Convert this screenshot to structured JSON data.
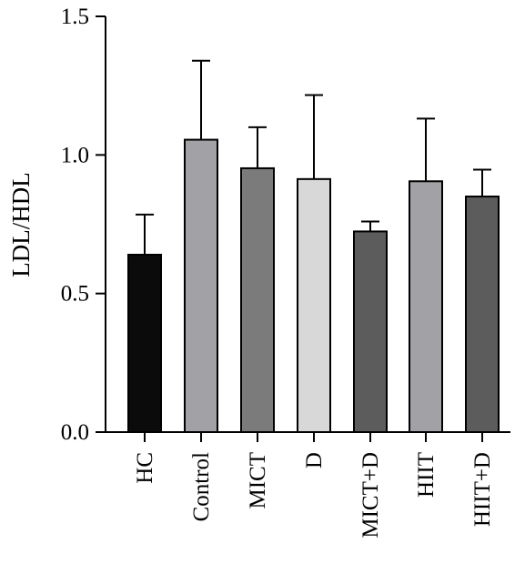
{
  "chart_data": {
    "type": "bar",
    "ylabel": "LDL/HDL",
    "xlabel": "",
    "ylim": [
      0,
      1.5
    ],
    "yticks": [
      "0.0",
      "0.5",
      "1.0",
      "1.5"
    ],
    "categories": [
      "HC",
      "Control",
      "MICT",
      "D",
      "MICT+D",
      "HIIT",
      "HIIT+D"
    ],
    "values": [
      0.64,
      1.055,
      0.952,
      0.913,
      0.724,
      0.905,
      0.85
    ],
    "error_upper": [
      0.145,
      0.285,
      0.148,
      0.303,
      0.036,
      0.226,
      0.097
    ],
    "colors": [
      "#0b0b0b",
      "#a2a2a6",
      "#7b7b7b",
      "#d8d8d8",
      "#5c5c5c",
      "#a2a2a6",
      "#5c5c5c"
    ],
    "grid": false,
    "legend": "none",
    "error_bars": "upper"
  }
}
